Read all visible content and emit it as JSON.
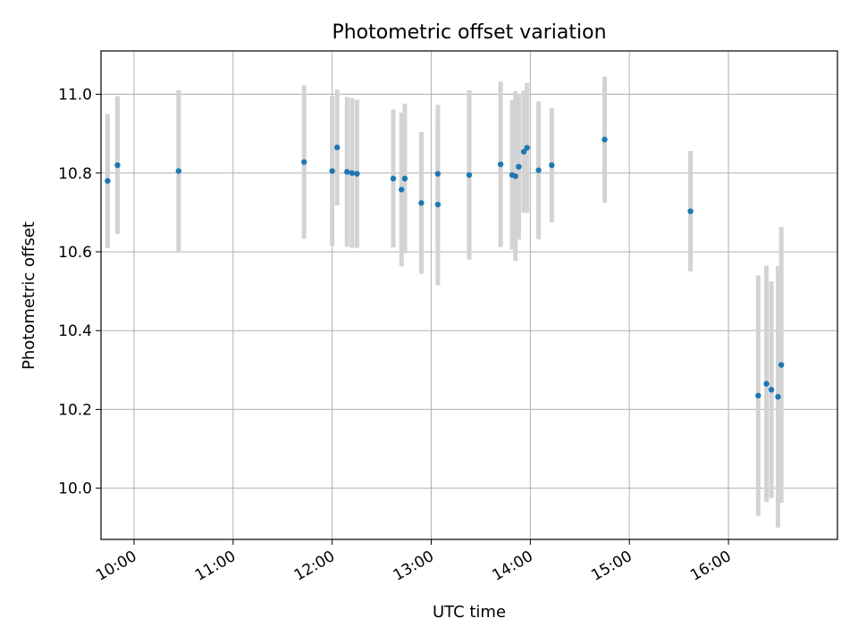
{
  "chart_data": {
    "type": "scatter",
    "title": "Photometric offset variation",
    "xlabel": "UTC time",
    "ylabel": "Photometric offset",
    "xlim": [
      "09:40",
      "17:06"
    ],
    "ylim": [
      9.87,
      11.11
    ],
    "x_ticks": [
      "10:00",
      "11:00",
      "12:00",
      "13:00",
      "14:00",
      "15:00",
      "16:00"
    ],
    "y_ticks": [
      "10.0",
      "10.2",
      "10.4",
      "10.6",
      "10.8",
      "11.0"
    ],
    "grid": true,
    "marker_color": "#1f77b4",
    "errorbar_color": "#d3d3d3",
    "points": [
      {
        "x": "09:44",
        "y": 10.78,
        "err": 0.17
      },
      {
        "x": "09:50",
        "y": 10.82,
        "err": 0.175
      },
      {
        "x": "10:27",
        "y": 10.805,
        "err": 0.205
      },
      {
        "x": "11:43",
        "y": 10.828,
        "err": 0.195
      },
      {
        "x": "12:00",
        "y": 10.805,
        "err": 0.19
      },
      {
        "x": "12:03",
        "y": 10.865,
        "err": 0.147
      },
      {
        "x": "12:09",
        "y": 10.803,
        "err": 0.19
      },
      {
        "x": "12:12",
        "y": 10.8,
        "err": 0.19
      },
      {
        "x": "12:15",
        "y": 10.798,
        "err": 0.188
      },
      {
        "x": "13:04",
        "y": 10.72,
        "err": 0.205
      },
      {
        "x": "12:37",
        "y": 10.786,
        "err": 0.175
      },
      {
        "x": "12:42",
        "y": 10.758,
        "err": 0.195
      },
      {
        "x": "12:44",
        "y": 10.786,
        "err": 0.19
      },
      {
        "x": "12:54",
        "y": 10.724,
        "err": 0.18
      },
      {
        "x": "13:04",
        "y": 10.798,
        "err": 0.175
      },
      {
        "x": "13:23",
        "y": 10.795,
        "err": 0.215
      },
      {
        "x": "13:42",
        "y": 10.822,
        "err": 0.21
      },
      {
        "x": "13:49",
        "y": 10.795,
        "err": 0.19
      },
      {
        "x": "13:51",
        "y": 10.792,
        "err": 0.215
      },
      {
        "x": "13:53",
        "y": 10.816,
        "err": 0.185
      },
      {
        "x": "13:56",
        "y": 10.854,
        "err": 0.155
      },
      {
        "x": "13:58",
        "y": 10.864,
        "err": 0.165
      },
      {
        "x": "14:05",
        "y": 10.807,
        "err": 0.175
      },
      {
        "x": "14:13",
        "y": 10.82,
        "err": 0.145
      },
      {
        "x": "14:45",
        "y": 10.885,
        "err": 0.16
      },
      {
        "x": "15:37",
        "y": 10.703,
        "err": 0.153
      },
      {
        "x": "16:18",
        "y": 10.235,
        "err": 0.305
      },
      {
        "x": "16:23",
        "y": 10.265,
        "err": 0.3
      },
      {
        "x": "16:26",
        "y": 10.25,
        "err": 0.275
      },
      {
        "x": "16:30",
        "y": 10.232,
        "err": 0.332
      },
      {
        "x": "16:32",
        "y": 10.313,
        "err": 0.35
      }
    ]
  }
}
